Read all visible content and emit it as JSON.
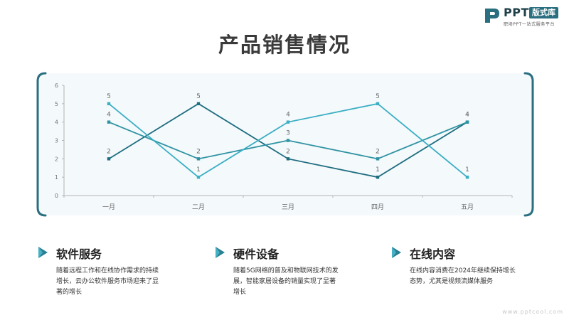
{
  "brand": {
    "name": "PPT",
    "badge": "版式库",
    "tagline": "职场PPT一站式服务平台"
  },
  "title": "产品销售情况",
  "chart_data": {
    "type": "line",
    "categories": [
      "一月",
      "二月",
      "三月",
      "四月",
      "五月"
    ],
    "series": [
      {
        "values": [
          2,
          5,
          2,
          1,
          4
        ],
        "color": "#1e6d80"
      },
      {
        "values": [
          4,
          2,
          3,
          2,
          4
        ],
        "color": "#2f93a3"
      },
      {
        "values": [
          5,
          1,
          4,
          5,
          1
        ],
        "color": "#3aaec4"
      }
    ],
    "ylim": [
      0,
      6
    ],
    "yticks": [
      0,
      1,
      2,
      3,
      4,
      5,
      6
    ],
    "data_labels": true,
    "grid": false,
    "legend": "none"
  },
  "features": [
    {
      "title": "软件服务",
      "body": "随着远程工作和在线协作需求的持续增长，云办公软件服务市场迎来了显著的增长"
    },
    {
      "title": "硬件设备",
      "body": "随着5G网络的普及和物联网技术的发展，智能家居设备的销量实现了显著增长"
    },
    {
      "title": "在线内容",
      "body": "在线内容消费在2024年继续保持增长态势，尤其是视频流媒体服务"
    }
  ],
  "watermark": "www.pptcool.com",
  "colors": {
    "accent": "#2a6f80",
    "title": "#3a3a3a"
  }
}
